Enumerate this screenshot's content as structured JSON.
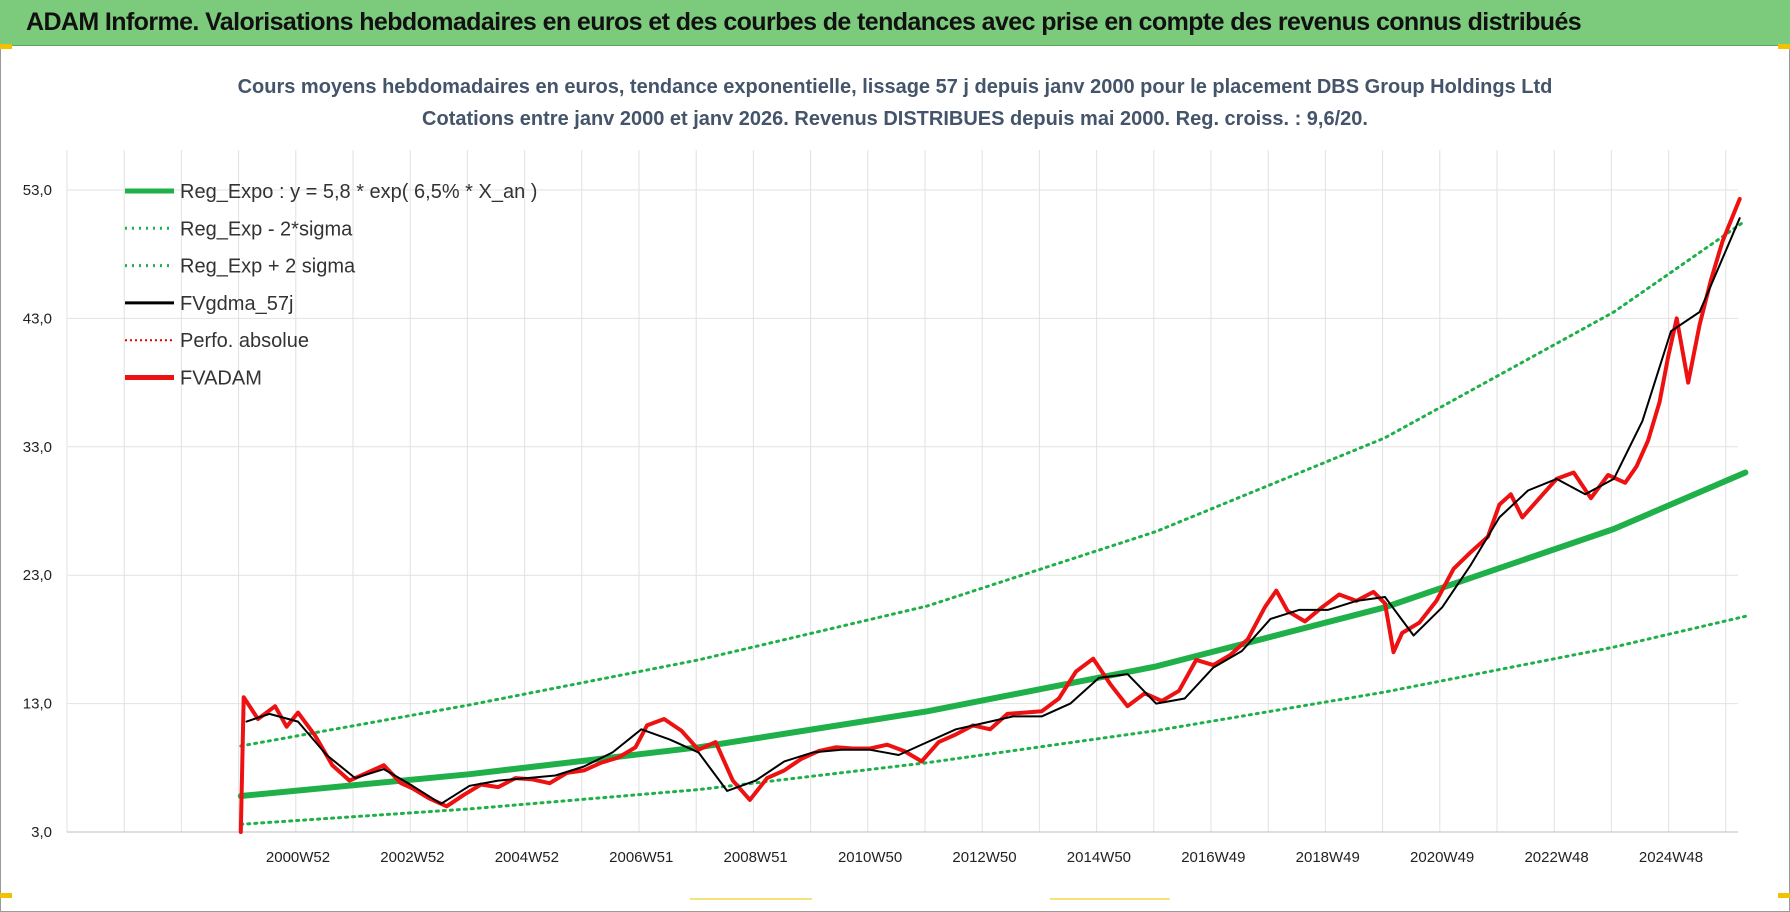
{
  "header": {
    "title": "ADAM Informe. Valorisations hebdomadaires en euros et des courbes de tendances avec prise en compte des revenus connus distribués",
    "background": "#7ccb7c"
  },
  "chart_data": {
    "type": "line",
    "title": "Cours moyens hebdomadaires en euros, tendance exponentielle, lissage 57 j depuis janv 2000 pour le placement DBS Group Holdings Ltd",
    "subtitle": "Cotations entre janv 2000 et janv 2026. Revenus DISTRIBUES depuis mai 2000. Reg. croiss. : 9,6/20.",
    "ylim": [
      3,
      55
    ],
    "yticks": [
      "3,0",
      "13,0",
      "23,0",
      "33,0",
      "43,0",
      "53,0"
    ],
    "ytick_values": [
      3,
      13,
      23,
      33,
      43,
      53
    ],
    "xlim": [
      1998.2,
      2026.5
    ],
    "xticks": [
      "2000W52",
      "2002W52",
      "2004W52",
      "2006W51",
      "2008W51",
      "2010W50",
      "2012W50",
      "2014W50",
      "2016W49",
      "2018W49",
      "2020W49",
      "2022W48",
      "2024W48"
    ],
    "xtick_values": [
      2001,
      2003,
      2005,
      2007,
      2009,
      2011,
      2013,
      2015,
      2017,
      2019,
      2021,
      2023,
      2025
    ],
    "grid": true,
    "legend_position": "top-left",
    "series": [
      {
        "name": "Reg_Expo : y = 5,8 * exp( 6,5% *  X_an )",
        "color": "#1fb04a",
        "style": "solid-thick",
        "x": [
          2000,
          2004,
          2008,
          2012,
          2016,
          2020,
          2024,
          2026.3
        ],
        "y": [
          5.8,
          7.5,
          9.6,
          12.4,
          15.9,
          20.5,
          26.6,
          31.0
        ]
      },
      {
        "name": "Reg_Exp - 2*sigma",
        "color": "#1fb04a",
        "style": "dotted",
        "x": [
          2000,
          2004,
          2008,
          2012,
          2016,
          2020,
          2024,
          2026.3
        ],
        "y": [
          3.6,
          4.8,
          6.3,
          8.4,
          10.9,
          13.9,
          17.4,
          19.8
        ]
      },
      {
        "name": "Reg_Exp + 2 sigma",
        "color": "#1fb04a",
        "style": "dotted",
        "x": [
          2000,
          2004,
          2008,
          2012,
          2016,
          2020,
          2024,
          2026.3
        ],
        "y": [
          9.7,
          12.9,
          16.4,
          20.6,
          26.4,
          33.7,
          43.5,
          50.6
        ]
      },
      {
        "name": "FVgdma_57j",
        "color": "#000000",
        "style": "solid",
        "x": [
          2000.1,
          2000.5,
          2001.0,
          2001.5,
          2002.0,
          2002.5,
          2003.0,
          2003.5,
          2004.0,
          2004.5,
          2005.0,
          2005.5,
          2006.0,
          2006.5,
          2007.0,
          2007.5,
          2008.0,
          2008.5,
          2009.0,
          2009.5,
          2010.0,
          2010.5,
          2011.0,
          2011.5,
          2012.0,
          2012.5,
          2013.0,
          2013.5,
          2014.0,
          2014.5,
          2015.0,
          2015.5,
          2016.0,
          2016.5,
          2017.0,
          2017.5,
          2018.0,
          2018.5,
          2019.0,
          2019.5,
          2020.0,
          2020.5,
          2021.0,
          2021.5,
          2022.0,
          2022.5,
          2023.0,
          2023.5,
          2024.0,
          2024.5,
          2025.0,
          2025.5,
          2026.2
        ],
        "y": [
          11.6,
          12.2,
          11.6,
          9.0,
          7.2,
          7.9,
          6.6,
          5.2,
          6.6,
          7.0,
          7.2,
          7.4,
          8.1,
          9.2,
          11.0,
          10.2,
          9.2,
          6.2,
          7.0,
          8.5,
          9.2,
          9.4,
          9.4,
          9.0,
          10.0,
          11.0,
          11.5,
          12.0,
          12.0,
          13.0,
          15.0,
          15.3,
          13.0,
          13.4,
          15.8,
          17.1,
          19.6,
          20.3,
          20.3,
          21.0,
          21.3,
          18.3,
          20.5,
          23.8,
          27.5,
          29.6,
          30.5,
          29.3,
          30.5,
          35.0,
          42.0,
          43.5,
          50.8
        ]
      },
      {
        "name": "Perfo. absolue",
        "color": "#e00000",
        "style": "dotted",
        "x": [],
        "y": []
      },
      {
        "name": "FVADAM",
        "color": "#ee1111",
        "style": "solid-thick",
        "x": [
          2000.0,
          2000.05,
          2000.3,
          2000.6,
          2000.8,
          2001.0,
          2001.3,
          2001.6,
          2001.9,
          2002.2,
          2002.5,
          2002.8,
          2003.0,
          2003.3,
          2003.6,
          2003.9,
          2004.2,
          2004.5,
          2004.8,
          2005.1,
          2005.4,
          2005.7,
          2006.0,
          2006.3,
          2006.6,
          2006.9,
          2007.1,
          2007.4,
          2007.7,
          2008.0,
          2008.3,
          2008.6,
          2008.9,
          2009.2,
          2009.5,
          2009.8,
          2010.1,
          2010.4,
          2010.7,
          2011.0,
          2011.3,
          2011.6,
          2011.9,
          2012.2,
          2012.5,
          2012.8,
          2013.1,
          2013.4,
          2013.7,
          2014.0,
          2014.3,
          2014.6,
          2014.9,
          2015.2,
          2015.5,
          2015.8,
          2016.1,
          2016.4,
          2016.7,
          2017.0,
          2017.3,
          2017.6,
          2017.9,
          2018.1,
          2018.3,
          2018.6,
          2018.9,
          2019.2,
          2019.5,
          2019.8,
          2020.0,
          2020.15,
          2020.3,
          2020.6,
          2020.9,
          2021.2,
          2021.5,
          2021.8,
          2022.0,
          2022.2,
          2022.4,
          2022.7,
          2023.0,
          2023.3,
          2023.6,
          2023.9,
          2024.2,
          2024.4,
          2024.6,
          2024.8,
          2024.95,
          2025.1,
          2025.3,
          2025.5,
          2025.7,
          2025.9,
          2026.2
        ],
        "y": [
          3.0,
          13.5,
          11.8,
          12.8,
          11.2,
          12.3,
          10.5,
          8.2,
          7.0,
          7.6,
          8.2,
          6.8,
          6.4,
          5.6,
          5.0,
          5.9,
          6.7,
          6.5,
          7.2,
          7.1,
          6.8,
          7.6,
          7.8,
          8.4,
          8.8,
          9.6,
          11.3,
          11.8,
          10.9,
          9.4,
          10.0,
          7.0,
          5.5,
          7.2,
          7.8,
          8.7,
          9.3,
          9.6,
          9.5,
          9.5,
          9.8,
          9.3,
          8.5,
          10.0,
          10.6,
          11.3,
          11.0,
          12.2,
          12.3,
          12.4,
          13.4,
          15.5,
          16.5,
          14.5,
          12.8,
          13.8,
          13.2,
          14.0,
          16.4,
          16.0,
          16.8,
          18.0,
          20.5,
          21.8,
          20.2,
          19.4,
          20.5,
          21.5,
          21.0,
          21.7,
          20.8,
          17.0,
          18.5,
          19.3,
          21.0,
          23.5,
          24.8,
          26.0,
          28.5,
          29.3,
          27.5,
          29.0,
          30.5,
          31.0,
          29.0,
          30.8,
          30.2,
          31.5,
          33.5,
          36.5,
          40.0,
          43.0,
          38.0,
          42.5,
          46.0,
          49.0,
          52.3
        ]
      }
    ]
  }
}
